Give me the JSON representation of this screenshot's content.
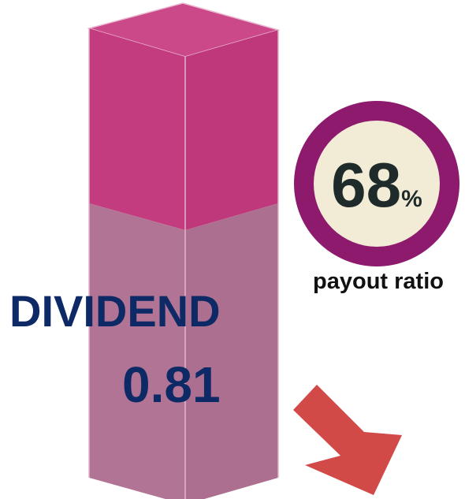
{
  "dividend": {
    "label": "DIVIDEND",
    "value": "0.81"
  },
  "payout_ratio": {
    "value": "68",
    "unit": "%",
    "label": "payout ratio"
  }
}
